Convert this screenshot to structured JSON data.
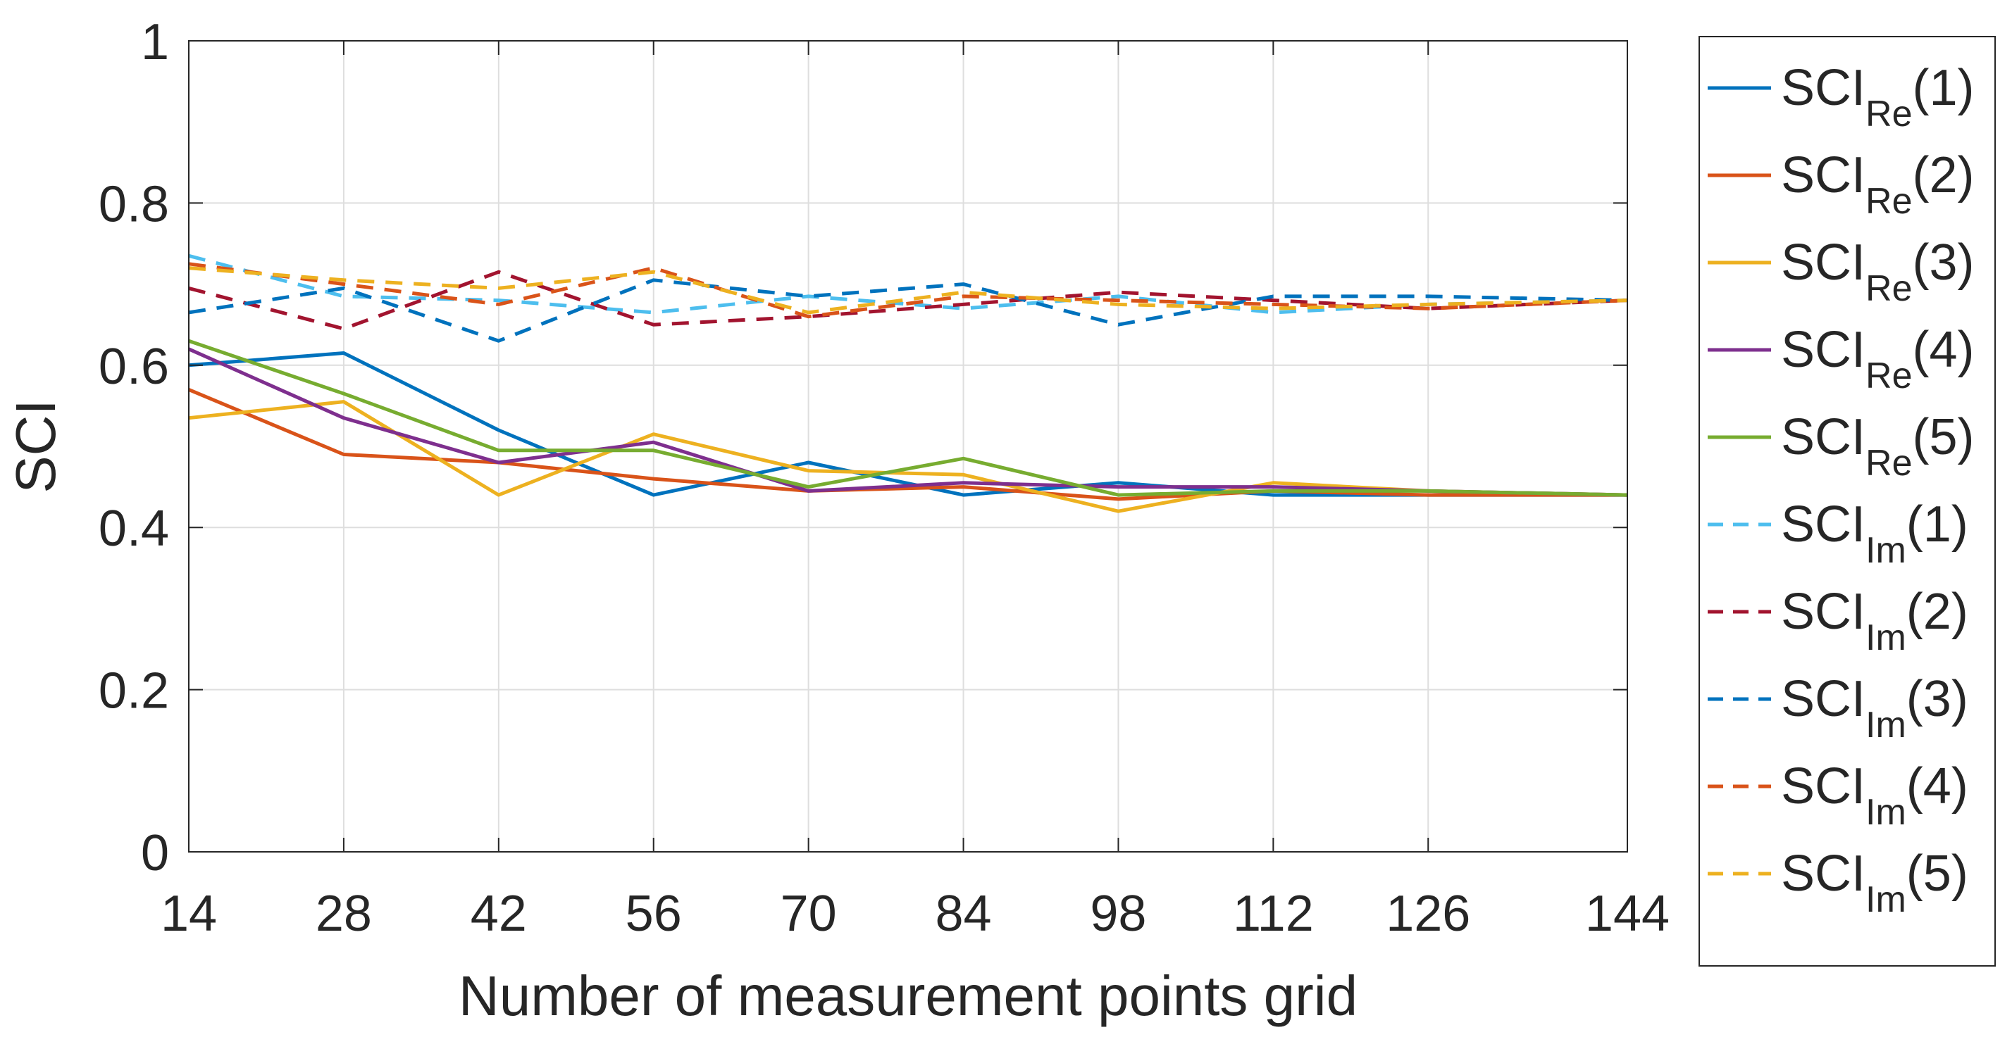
{
  "chart_data": {
    "type": "line",
    "title": "",
    "xlabel": "Number of measurement points grid",
    "ylabel": "SCI",
    "x": [
      14,
      28,
      42,
      56,
      70,
      84,
      98,
      112,
      126,
      144
    ],
    "xlim": [
      14,
      144
    ],
    "ylim": [
      0,
      1
    ],
    "xticks": [
      "14",
      "28",
      "42",
      "56",
      "70",
      "84",
      "98",
      "112",
      "126",
      "144"
    ],
    "yticks": [
      "0",
      "0.2",
      "0.4",
      "0.6",
      "0.8",
      "1"
    ],
    "grid": true,
    "legend_position": "outside-right",
    "series": [
      {
        "base": "SCI",
        "sub": "Re",
        "suffix": "(1)",
        "color": "#0072BD",
        "dash": "solid",
        "values": [
          0.6,
          0.615,
          0.52,
          0.44,
          0.48,
          0.44,
          0.455,
          0.44,
          0.44,
          0.44
        ]
      },
      {
        "base": "SCI",
        "sub": "Re",
        "suffix": "(2)",
        "color": "#D95319",
        "dash": "solid",
        "values": [
          0.57,
          0.49,
          0.48,
          0.46,
          0.445,
          0.45,
          0.435,
          0.445,
          0.44,
          0.44
        ]
      },
      {
        "base": "SCI",
        "sub": "Re",
        "suffix": "(3)",
        "color": "#EDB120",
        "dash": "solid",
        "values": [
          0.535,
          0.555,
          0.44,
          0.515,
          0.47,
          0.465,
          0.42,
          0.455,
          0.445,
          0.44
        ]
      },
      {
        "base": "SCI",
        "sub": "Re",
        "suffix": "(4)",
        "color": "#7E2F8E",
        "dash": "solid",
        "values": [
          0.62,
          0.535,
          0.48,
          0.505,
          0.445,
          0.455,
          0.45,
          0.45,
          0.445,
          0.44
        ]
      },
      {
        "base": "SCI",
        "sub": "Re",
        "suffix": "(5)",
        "color": "#77AC30",
        "dash": "solid",
        "values": [
          0.63,
          0.565,
          0.495,
          0.495,
          0.45,
          0.485,
          0.44,
          0.445,
          0.445,
          0.44
        ]
      },
      {
        "base": "SCI",
        "sub": "Im",
        "suffix": "(1)",
        "color": "#4DBEEE",
        "dash": "dashed",
        "values": [
          0.735,
          0.685,
          0.68,
          0.665,
          0.685,
          0.67,
          0.685,
          0.665,
          0.675,
          0.68
        ]
      },
      {
        "base": "SCI",
        "sub": "Im",
        "suffix": "(2)",
        "color": "#A2142F",
        "dash": "dashed",
        "values": [
          0.695,
          0.645,
          0.715,
          0.65,
          0.66,
          0.675,
          0.69,
          0.68,
          0.67,
          0.68
        ]
      },
      {
        "base": "SCI",
        "sub": "Im",
        "suffix": "(3)",
        "color": "#0072BD",
        "dash": "dashed",
        "values": [
          0.665,
          0.695,
          0.63,
          0.705,
          0.685,
          0.7,
          0.65,
          0.685,
          0.685,
          0.68
        ]
      },
      {
        "base": "SCI",
        "sub": "Im",
        "suffix": "(4)",
        "color": "#D95319",
        "dash": "dashed",
        "values": [
          0.725,
          0.7,
          0.675,
          0.72,
          0.66,
          0.685,
          0.68,
          0.675,
          0.67,
          0.68
        ]
      },
      {
        "base": "SCI",
        "sub": "Im",
        "suffix": "(5)",
        "color": "#EDB120",
        "dash": "dashed",
        "values": [
          0.72,
          0.705,
          0.695,
          0.715,
          0.665,
          0.69,
          0.675,
          0.67,
          0.675,
          0.68
        ]
      }
    ]
  }
}
